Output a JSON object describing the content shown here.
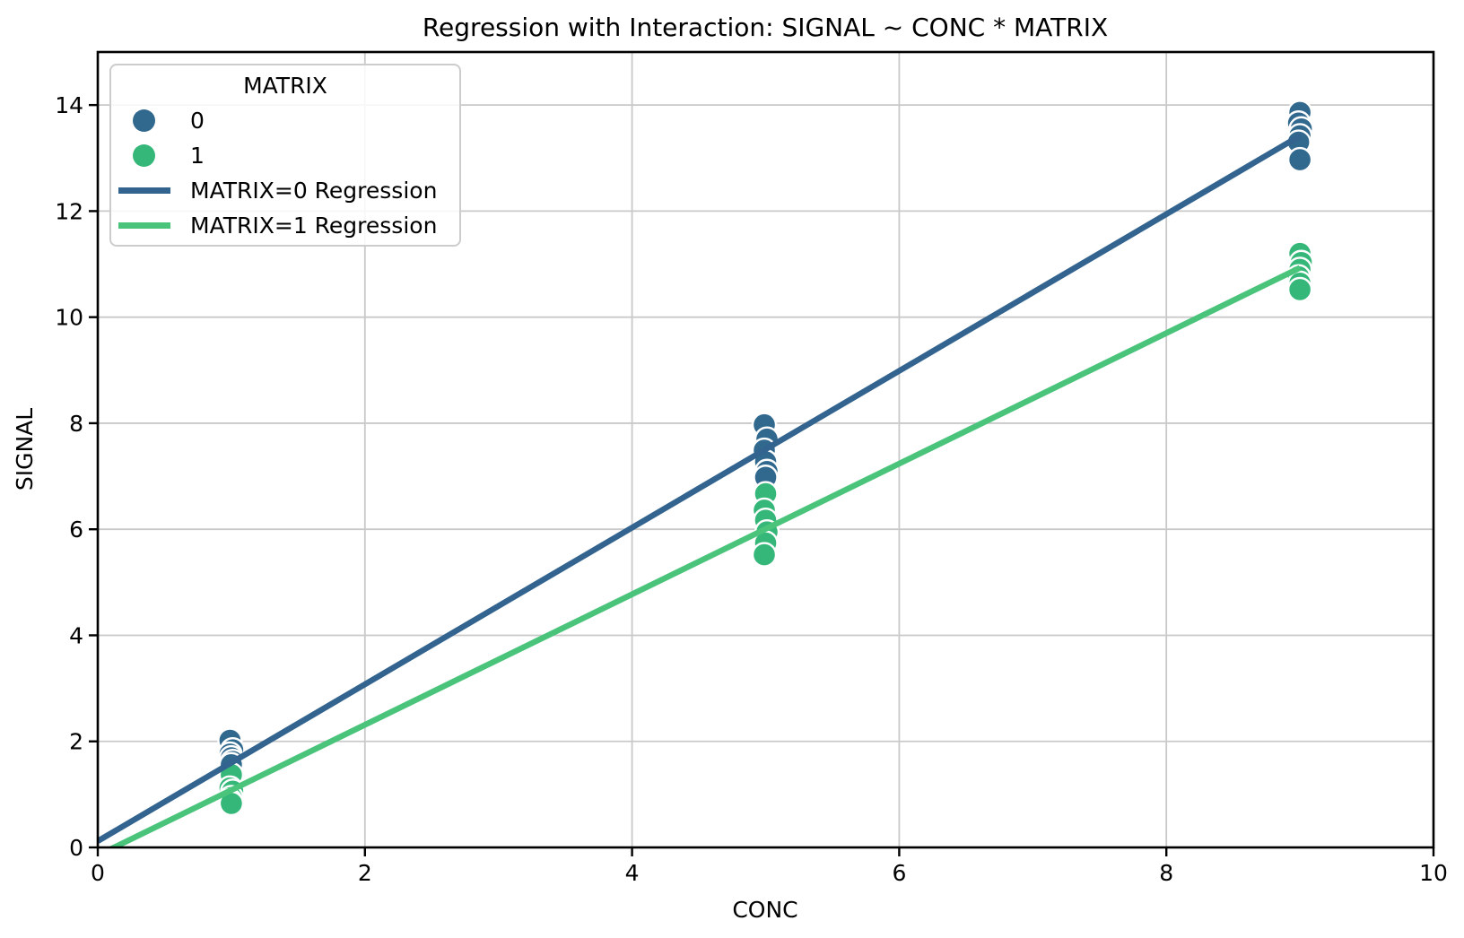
{
  "colors": {
    "background": "#ffffff",
    "grid": "#c9c9c9",
    "spine": "#000000",
    "text": "#000000",
    "matrix0_marker": "#31688e",
    "matrix1_marker": "#35b779",
    "matrix0_line": "#33648f",
    "matrix1_line": "#4ac47b",
    "marker_edge": "#ffffff"
  },
  "chart_data": {
    "type": "scatter",
    "title": "Regression with Interaction: SIGNAL ~ CONC * MATRIX",
    "xlabel": "CONC",
    "ylabel": "SIGNAL",
    "xlim": [
      0,
      10
    ],
    "ylim": [
      0,
      15
    ],
    "xticks": [
      "0",
      "2",
      "4",
      "6",
      "8",
      "10"
    ],
    "xtick_values": [
      0,
      2,
      4,
      6,
      8,
      10
    ],
    "yticks": [
      "0",
      "2",
      "4",
      "6",
      "8",
      "10",
      "12",
      "14"
    ],
    "ytick_values": [
      0,
      2,
      4,
      6,
      8,
      10,
      12,
      14
    ],
    "grid": true,
    "legend": {
      "title": "MATRIX",
      "position": "upper left",
      "entries": [
        {
          "marker": "dot",
          "color": "#31688e",
          "label": "0"
        },
        {
          "marker": "dot",
          "color": "#35b779",
          "label": "1"
        },
        {
          "marker": "line",
          "color": "#33648f",
          "label": "MATRIX=0 Regression"
        },
        {
          "marker": "line",
          "color": "#4ac47b",
          "label": "MATRIX=1 Regression"
        }
      ]
    },
    "series": [
      {
        "name": "0",
        "kind": "scatter",
        "color": "#31688e",
        "edge_color": "#ffffff",
        "points": [
          [
            0.99,
            2.02
          ],
          [
            1.01,
            1.84
          ],
          [
            0.99,
            1.76
          ],
          [
            1.0,
            1.69
          ],
          [
            1.01,
            1.62
          ],
          [
            1.0,
            1.56
          ],
          [
            4.99,
            7.97
          ],
          [
            5.01,
            7.7
          ],
          [
            4.99,
            7.49
          ],
          [
            5.0,
            7.27
          ],
          [
            5.01,
            7.09
          ],
          [
            5.0,
            6.98
          ],
          [
            9.0,
            13.86
          ],
          [
            8.99,
            13.66
          ],
          [
            9.01,
            13.55
          ],
          [
            9.0,
            13.42
          ],
          [
            8.99,
            13.3
          ],
          [
            9.0,
            12.97
          ]
        ]
      },
      {
        "name": "1",
        "kind": "scatter",
        "color": "#35b779",
        "edge_color": "#ffffff",
        "points": [
          [
            1.0,
            1.37
          ],
          [
            0.99,
            1.12
          ],
          [
            1.01,
            1.06
          ],
          [
            1.0,
            0.94
          ],
          [
            0.99,
            0.88
          ],
          [
            1.0,
            0.83
          ],
          [
            5.0,
            6.67
          ],
          [
            4.99,
            6.36
          ],
          [
            5.0,
            6.17
          ],
          [
            5.01,
            5.95
          ],
          [
            5.0,
            5.74
          ],
          [
            4.99,
            5.52
          ],
          [
            9.0,
            11.2
          ],
          [
            9.01,
            11.03
          ],
          [
            9.0,
            10.9
          ],
          [
            8.99,
            10.76
          ],
          [
            9.0,
            10.64
          ],
          [
            9.0,
            10.52
          ]
        ]
      },
      {
        "name": "MATRIX=0 Regression",
        "kind": "line",
        "color": "#33648f",
        "points": [
          [
            0,
            0.12
          ],
          [
            9,
            13.42
          ]
        ]
      },
      {
        "name": "MATRIX=1 Regression",
        "kind": "line",
        "color": "#4ac47b",
        "points": [
          [
            0,
            -0.15
          ],
          [
            9,
            10.93
          ]
        ]
      }
    ]
  }
}
